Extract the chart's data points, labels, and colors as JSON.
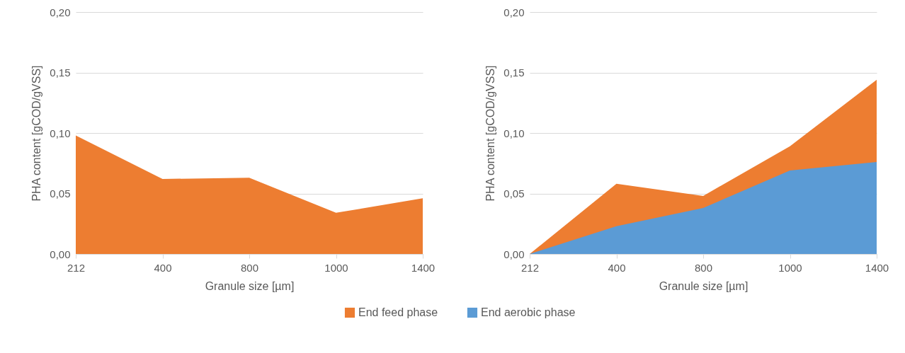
{
  "chart_data": [
    {
      "type": "area",
      "xlabel": "Granule size [µm]",
      "ylabel": "PHA content [gCOD/gVSS]",
      "categories": [
        "212",
        "400",
        "800",
        "1000",
        "1400"
      ],
      "series": [
        {
          "name": "End feed phase",
          "color": "#ed7d31",
          "values": [
            0.098,
            0.062,
            0.063,
            0.034,
            0.046
          ]
        }
      ],
      "ylim": [
        0,
        0.2
      ],
      "yticks": [
        {
          "value": 0,
          "label": "0,00"
        },
        {
          "value": 0.05,
          "label": "0,05"
        },
        {
          "value": 0.1,
          "label": "0,10"
        },
        {
          "value": 0.15,
          "label": "0,15"
        },
        {
          "value": 0.2,
          "label": "0,20"
        }
      ],
      "grid": "y",
      "legend": "bottom"
    },
    {
      "type": "area",
      "xlabel": "Granule size [µm]",
      "ylabel": "PHA content [gCOD/gVSS]",
      "categories": [
        "212",
        "400",
        "800",
        "1000",
        "1400"
      ],
      "series": [
        {
          "name": "End feed phase",
          "color": "#ed7d31",
          "values": [
            0,
            0.058,
            0.048,
            0.089,
            0.144
          ]
        },
        {
          "name": "End aerobic phase",
          "color": "#5b9bd5",
          "values": [
            0,
            0.023,
            0.038,
            0.069,
            0.076
          ]
        }
      ],
      "ylim": [
        0,
        0.2
      ],
      "yticks": [
        {
          "value": 0,
          "label": "0,00"
        },
        {
          "value": 0.05,
          "label": "0,05"
        },
        {
          "value": 0.1,
          "label": "0,10"
        },
        {
          "value": 0.15,
          "label": "0,15"
        },
        {
          "value": 0.2,
          "label": "0,20"
        }
      ],
      "grid": "y",
      "legend": "bottom"
    }
  ]
}
